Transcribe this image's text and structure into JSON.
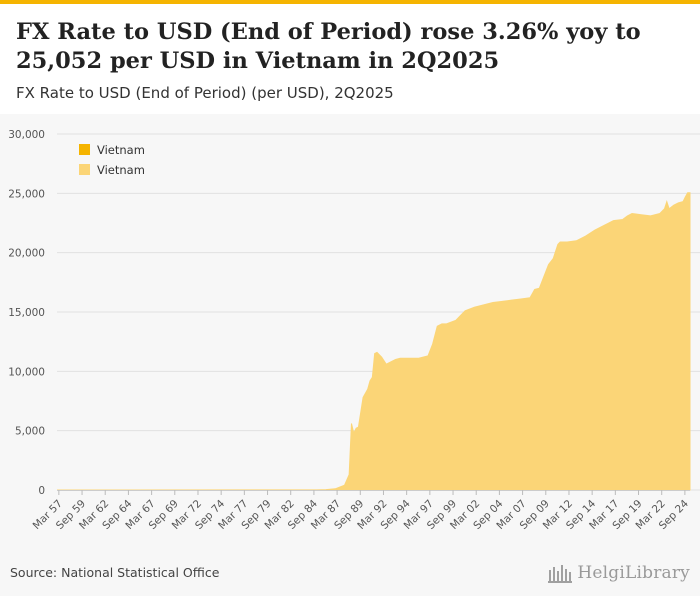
{
  "header": {
    "title": "FX Rate to USD (End of Period) rose 3.26% yoy to 25,052 per USD in Vietnam in 2Q2025",
    "subtitle": "FX Rate to USD (End of Period) (per USD), 2Q2025"
  },
  "footer": {
    "source": "Source: National Statistical Office",
    "logo_text": "HelgiLibrary"
  },
  "colors": {
    "accent": "#f5b400",
    "area_fill": "#fbd577",
    "legend_primary": "#f5b400",
    "legend_secondary": "#fbd577"
  },
  "chart_data": {
    "type": "area",
    "title": "FX Rate to USD (End of Period) (per USD), 2Q2025",
    "xlabel": "",
    "ylabel": "",
    "ylim": [
      0,
      30000
    ],
    "yticks": [
      0,
      5000,
      10000,
      15000,
      20000,
      25000,
      30000
    ],
    "ytick_labels": [
      "0",
      "5,000",
      "10,000",
      "15,000",
      "20,000",
      "25,000",
      "30,000"
    ],
    "xlim": [
      1957.0,
      2025.25
    ],
    "xtick_labels": [
      "Mar 57",
      "Sep 59",
      "Mar 62",
      "Sep 64",
      "Mar 67",
      "Sep 69",
      "Mar 72",
      "Sep 74",
      "Mar 77",
      "Sep 79",
      "Mar 82",
      "Sep 84",
      "Mar 87",
      "Sep 89",
      "Mar 92",
      "Sep 94",
      "Mar 97",
      "Sep 99",
      "Mar 02",
      "Sep 04",
      "Mar 07",
      "Sep 09",
      "Mar 12",
      "Sep 14",
      "Mar 17",
      "Sep 19",
      "Mar 22",
      "Sep 24"
    ],
    "grid": true,
    "legend": {
      "placement": "top-left",
      "entries": [
        "Vietnam",
        "Vietnam"
      ]
    },
    "series": [
      {
        "name": "Vietnam",
        "x": [
          1957.0,
          1985.0,
          1986.0,
          1987.0,
          1988.0,
          1988.5,
          1988.75,
          1989.0,
          1989.25,
          1989.5,
          1990.0,
          1990.5,
          1990.75,
          1991.0,
          1991.25,
          1991.5,
          1992.0,
          1992.5,
          1993.0,
          1993.5,
          1994.0,
          1995.0,
          1996.0,
          1997.0,
          1997.5,
          1998.0,
          1998.5,
          1999.0,
          2000.0,
          2001.0,
          2002.0,
          2003.0,
          2004.0,
          2005.0,
          2006.0,
          2007.0,
          2008.0,
          2008.5,
          2009.0,
          2009.75,
          2010.0,
          2010.5,
          2011.0,
          2011.25,
          2012.0,
          2013.0,
          2014.0,
          2015.0,
          2016.0,
          2017.0,
          2018.0,
          2018.5,
          2019.0,
          2020.0,
          2021.0,
          2022.0,
          2022.5,
          2022.75,
          2023.0,
          2023.5,
          2024.0,
          2024.5,
          2024.75,
          2025.0,
          2025.25
        ],
        "values": [
          0,
          15,
          30,
          100,
          400,
          1300,
          5600,
          4800,
          5200,
          5300,
          7800,
          8500,
          9200,
          9500,
          11500,
          11600,
          11200,
          10600,
          10800,
          11000,
          11100,
          11100,
          11100,
          11300,
          12300,
          13800,
          14000,
          14000,
          14300,
          15100,
          15400,
          15600,
          15800,
          15900,
          16000,
          16100,
          16200,
          16900,
          17000,
          18500,
          19000,
          19500,
          20700,
          20900,
          20900,
          21000,
          21400,
          21900,
          22300,
          22700,
          22800,
          23100,
          23300,
          23200,
          23100,
          23300,
          23700,
          24300,
          23700,
          24000,
          24200,
          24300,
          24700,
          25052,
          25052
        ]
      }
    ]
  }
}
